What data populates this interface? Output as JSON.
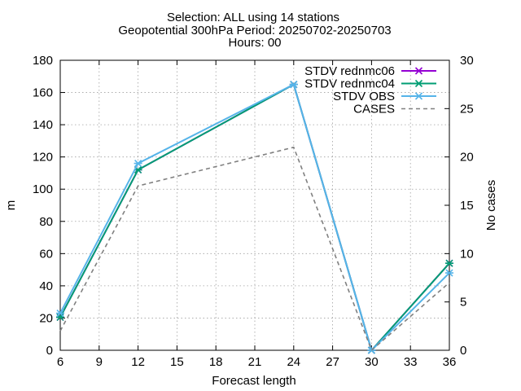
{
  "chart_data": {
    "type": "line",
    "title_lines": [
      "Selection: ALL using    14 stations",
      "Geopotential 300hPa   Period: 20250702-20250703",
      "Hours: 00"
    ],
    "xlabel": "Forecast length",
    "ylabel": "m",
    "y2label": "No cases",
    "xlim": [
      6,
      36
    ],
    "ylim": [
      0,
      180
    ],
    "y2lim": [
      0,
      30
    ],
    "xticks": [
      6,
      9,
      12,
      15,
      18,
      21,
      24,
      27,
      30,
      33,
      36
    ],
    "yticks": [
      0,
      20,
      40,
      60,
      80,
      100,
      120,
      140,
      160,
      180
    ],
    "y2ticks": [
      0,
      5,
      10,
      15,
      20,
      25,
      30
    ],
    "grid": true,
    "legend_position": "top-right",
    "series": [
      {
        "name": "STDV rednmc06",
        "axis": "y",
        "color": "#9400d3",
        "style": "solid",
        "marker": "x",
        "x": [
          6,
          12,
          24,
          30,
          36
        ],
        "values": [
          20.5,
          112,
          165,
          0,
          54
        ]
      },
      {
        "name": "STDV rednmc04",
        "axis": "y",
        "color": "#009e73",
        "style": "solid",
        "marker": "x",
        "x": [
          6,
          12,
          24,
          30,
          36
        ],
        "values": [
          20.5,
          112,
          165,
          0,
          54
        ]
      },
      {
        "name": "STDV OBS",
        "axis": "y",
        "color": "#56b4e9",
        "style": "solid",
        "marker": "x",
        "x": [
          6,
          12,
          24,
          30,
          36
        ],
        "values": [
          23,
          116,
          165,
          0,
          48
        ]
      },
      {
        "name": "CASES",
        "axis": "y2",
        "color": "#808080",
        "style": "dashed",
        "marker": "none",
        "x": [
          6,
          12,
          18,
          24,
          30,
          36
        ],
        "values": [
          2,
          17,
          19,
          21,
          0,
          7
        ]
      }
    ]
  }
}
